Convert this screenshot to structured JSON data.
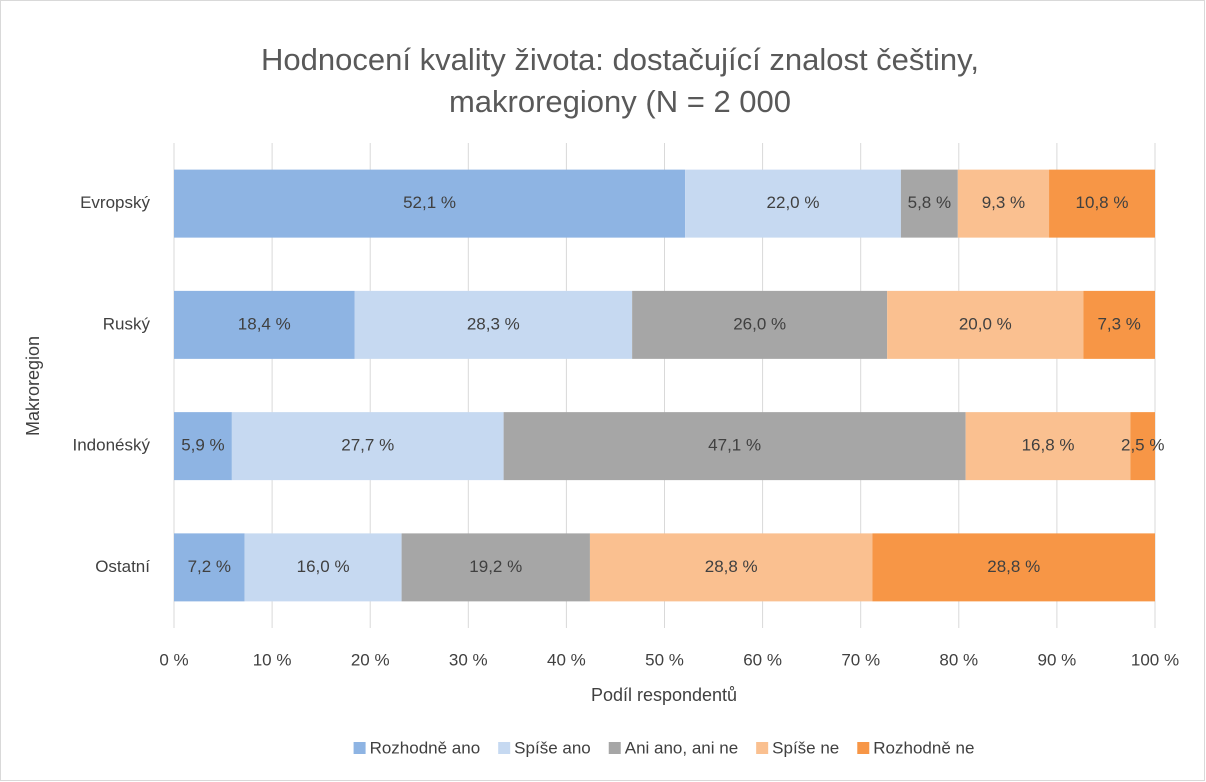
{
  "chart_data": {
    "type": "stacked-barh",
    "title": [
      "Hodnocení kvality života: dostačující znalost češtiny,",
      "makroregiony (N = 2 000"
    ],
    "xlabel": "Podíl respondentů",
    "ylabel": "Makroregion",
    "categories": [
      "Evropský",
      "Ruský",
      "Indonéský",
      "Ostatní"
    ],
    "series": [
      {
        "name": "Rozhodně ano",
        "color": "#8eb4e3",
        "values": [
          52.1,
          18.4,
          5.9,
          7.2
        ],
        "value_labels": [
          "52,1 %",
          "18,4 %",
          "5,9 %",
          "7,2 %"
        ]
      },
      {
        "name": "Spíše ano",
        "color": "#c6d9f1",
        "values": [
          22.0,
          28.3,
          27.7,
          16.0
        ],
        "value_labels": [
          "22,0 %",
          "28,3 %",
          "27,7 %",
          "16,0 %"
        ]
      },
      {
        "name": "Ani ano, ani ne",
        "color": "#a6a6a6",
        "values": [
          5.8,
          26.0,
          47.1,
          19.2
        ],
        "value_labels": [
          "5,8 %",
          "26,0 %",
          "47,1 %",
          "19,2 %"
        ]
      },
      {
        "name": "Spíše ne",
        "color": "#fac090",
        "values": [
          9.3,
          20.0,
          16.8,
          28.8
        ],
        "value_labels": [
          "9,3 %",
          "20,0 %",
          "16,8 %",
          "28,8 %"
        ]
      },
      {
        "name": "Rozhodně ne",
        "color": "#f79646",
        "values": [
          10.8,
          7.3,
          2.5,
          28.8
        ],
        "value_labels": [
          "10,8 %",
          "7,3 %",
          "2,5 %",
          "28,8 %"
        ]
      }
    ],
    "xlim": [
      0,
      100
    ],
    "xticks": [
      {
        "value": 0,
        "label": "0 %"
      },
      {
        "value": 10,
        "label": "10 %"
      },
      {
        "value": 20,
        "label": "20 %"
      },
      {
        "value": 30,
        "label": "30 %"
      },
      {
        "value": 40,
        "label": "40 %"
      },
      {
        "value": 50,
        "label": "50 %"
      },
      {
        "value": 60,
        "label": "60 %"
      },
      {
        "value": 70,
        "label": "70 %"
      },
      {
        "value": 80,
        "label": "80 %"
      },
      {
        "value": 90,
        "label": "90 %"
      },
      {
        "value": 100,
        "label": "100 %"
      }
    ],
    "grid": true,
    "legend": "bottom"
  }
}
